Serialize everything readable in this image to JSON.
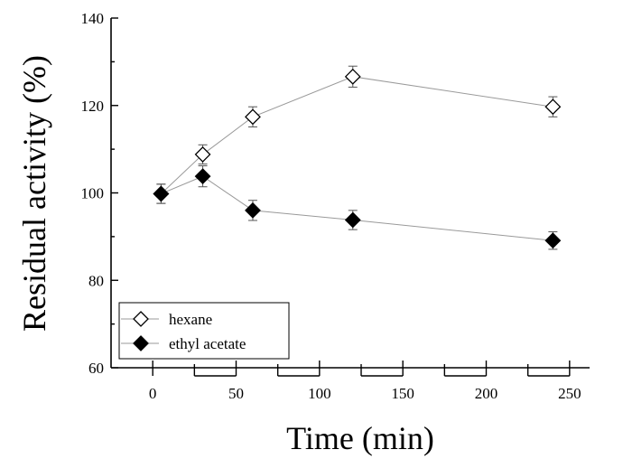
{
  "chart_data": {
    "type": "scatter",
    "xlabel": "Time (min)",
    "ylabel": "Residual activity (%)",
    "xlim": [
      -25,
      262
    ],
    "ylim": [
      60,
      140
    ],
    "xticks": [
      0,
      50,
      100,
      150,
      200,
      250
    ],
    "yticks": [
      60,
      80,
      100,
      120,
      140
    ],
    "legend_position": "bottom-left",
    "grid": false,
    "series": [
      {
        "name": "hexane",
        "marker": "open-diamond",
        "x": [
          5,
          30,
          60,
          120,
          240
        ],
        "y": [
          99.8,
          108.8,
          117.4,
          126.6,
          119.7
        ],
        "error": [
          2.2,
          2.2,
          2.3,
          2.4,
          2.3
        ]
      },
      {
        "name": "ethyl acetate",
        "marker": "filled-diamond",
        "x": [
          5,
          30,
          60,
          120,
          240
        ],
        "y": [
          99.8,
          103.8,
          96.0,
          93.8,
          89.1
        ],
        "error": [
          2.2,
          2.4,
          2.3,
          2.2,
          2.0
        ]
      }
    ]
  }
}
